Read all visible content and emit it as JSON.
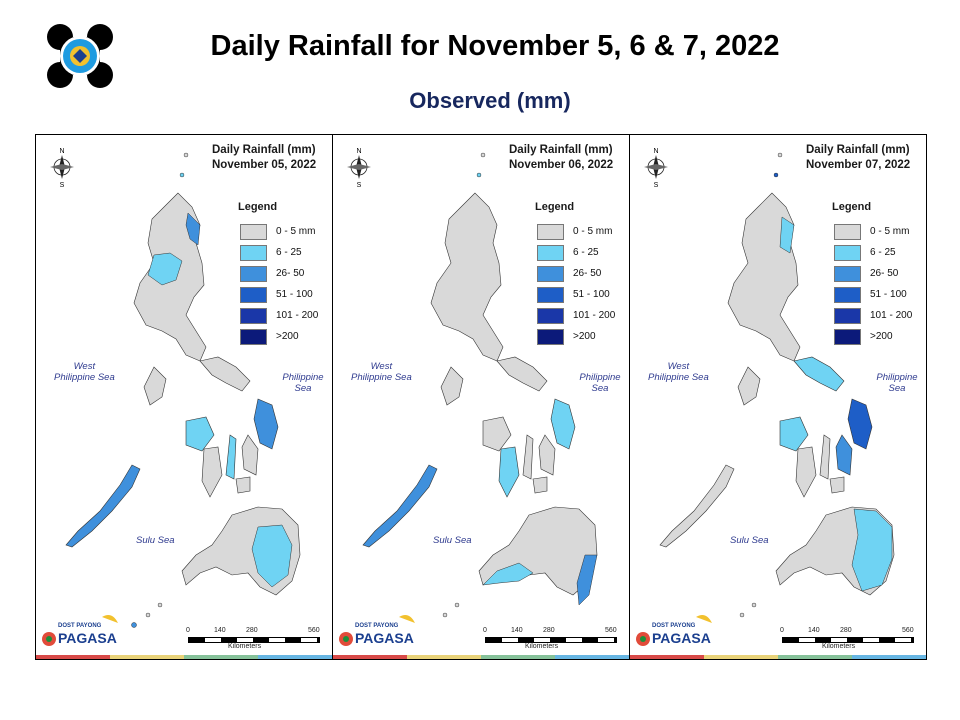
{
  "header": {
    "title": "Daily Rainfall for November 5, 6 & 7,  2022",
    "subtitle": "Observed (mm)"
  },
  "panels": [
    {
      "title_line1": "Daily Rainfall (mm)",
      "title_line2": "November 05, 2022"
    },
    {
      "title_line1": "Daily Rainfall (mm)",
      "title_line2": "November 06, 2022"
    },
    {
      "title_line1": "Daily Rainfall (mm)",
      "title_line2": "November 07, 2022"
    }
  ],
  "legend": {
    "title": "Legend",
    "items": [
      {
        "label": "0 - 5 mm",
        "color": "#d9d9d9"
      },
      {
        "label": "6 - 25",
        "color": "#6fd3f3"
      },
      {
        "label": "26- 50",
        "color": "#3f90dc"
      },
      {
        "label": "51 - 100",
        "color": "#1e5ec7"
      },
      {
        "label": "101 - 200",
        "color": "#1a37a8"
      },
      {
        "label": ">200",
        "color": "#0c1a7a"
      }
    ]
  },
  "seas": {
    "west_line1": "West",
    "west_line2": "Philippine Sea",
    "philippine": "Philippine Sea",
    "sulu": "Sulu Sea"
  },
  "scale": {
    "ticks": [
      "0",
      "140",
      "280",
      "560"
    ],
    "unit": "Kilometers"
  },
  "compass": {
    "n": "N",
    "s": "S",
    "e": "E",
    "w": "W"
  },
  "brand": {
    "line1": "DOST",
    "line2": "PAYONG",
    "line3": "PAGASA"
  },
  "colors": {
    "land": "#d9d9d9",
    "light": "#6fd3f3",
    "medium": "#3f90dc",
    "heavy": "#1e5ec7",
    "stripe": [
      "#d84a48",
      "#e9d37a",
      "#86c29a",
      "#67b6e3"
    ]
  }
}
